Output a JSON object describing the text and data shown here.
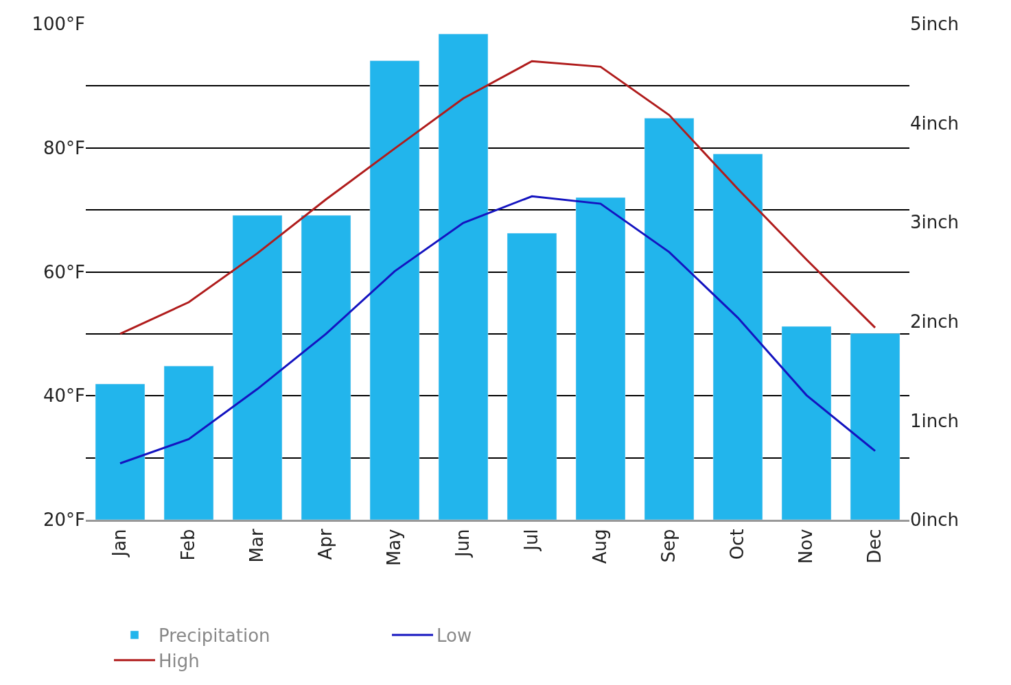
{
  "chart_data": {
    "type": "line",
    "categories": [
      "Jan",
      "Feb",
      "Mar",
      "Apr",
      "May",
      "Jun",
      "Jul",
      "Aug",
      "Sep",
      "Oct",
      "Nov",
      "Dec"
    ],
    "series": [
      {
        "name": "Low",
        "color": "#1414c0",
        "values": [
          29.1,
          33,
          41.1,
          50,
          60.1,
          67.9,
          72.2,
          71,
          63.2,
          52.6,
          40.1,
          31.1
        ]
      },
      {
        "name": "High",
        "color": "#b01c1c",
        "values": [
          50,
          55.1,
          63,
          71.7,
          79.9,
          88,
          94,
          93.1,
          85.3,
          73.4,
          62,
          51
        ]
      },
      {
        "name": "Precipitation",
        "type": "bar",
        "axis": "y2",
        "color": "#22b5ec",
        "values": [
          1.37,
          1.55,
          3.07,
          3.07,
          4.63,
          4.9,
          2.89,
          3.25,
          4.05,
          3.69,
          1.95,
          1.88
        ]
      }
    ],
    "ylim": [
      20,
      100
    ],
    "yticks": [
      {
        "value": 20,
        "label": "20°F"
      },
      {
        "value": 30,
        "label": null
      },
      {
        "value": 40,
        "label": "40°F"
      },
      {
        "value": 50,
        "label": null
      },
      {
        "value": 60,
        "label": "60°F"
      },
      {
        "value": 70,
        "label": null
      },
      {
        "value": 80,
        "label": "80°F"
      },
      {
        "value": 90,
        "label": null
      },
      {
        "value": 100,
        "label": "100°F"
      }
    ],
    "y2lim": [
      0,
      5
    ],
    "y2ticks": [
      {
        "value": 0,
        "label": "0inch"
      },
      {
        "value": 1,
        "label": "1inch"
      },
      {
        "value": 2,
        "label": "2inch"
      },
      {
        "value": 3,
        "label": "3inch"
      },
      {
        "value": 4,
        "label": "4inch"
      },
      {
        "value": 5,
        "label": "5inch"
      }
    ],
    "grid": "y",
    "legend": "bottom"
  }
}
